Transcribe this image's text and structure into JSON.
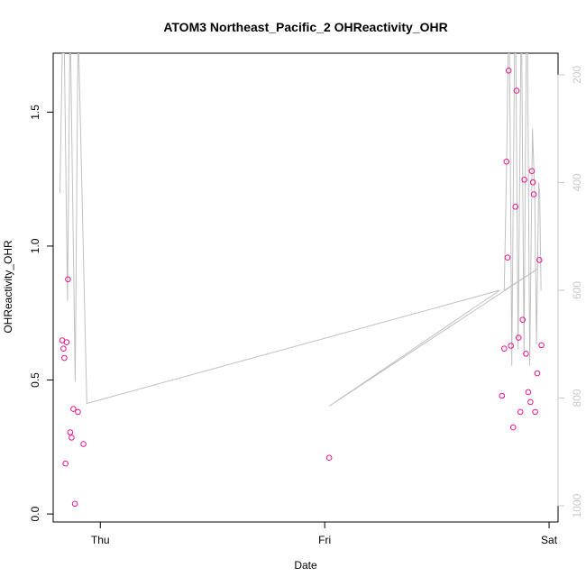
{
  "chart_data": {
    "type": "scatter",
    "title": "ATOM3 Northeast_Pacific_2 OHReactivity_OHR",
    "xlabel": "Date",
    "ylabel": "OHReactivity_OHR",
    "x_axis": {
      "ticks": [
        {
          "label": "Thu",
          "value": 1.0
        },
        {
          "label": "Fri",
          "value": 2.0
        },
        {
          "label": "Sat",
          "value": 3.0
        }
      ],
      "range_days": [
        0.79,
        3.04
      ]
    },
    "y_axis": {
      "range": [
        -0.03,
        1.72
      ],
      "ticks": [
        0.0,
        0.5,
        1.0,
        1.5
      ]
    },
    "right_axis": {
      "range": [
        1030,
        160
      ],
      "ticks": [
        200,
        400,
        600,
        800,
        1000
      ],
      "color": "#c8c8c8"
    },
    "grid": false,
    "colors": {
      "points": "#e8148c",
      "altitude_line": "#c0c0c0"
    },
    "series": [
      {
        "role": "points",
        "points": [
          [
            0.83,
            0.648
          ],
          [
            0.836,
            0.617
          ],
          [
            0.84,
            0.582
          ],
          [
            0.845,
            0.188
          ],
          [
            0.85,
            0.641
          ],
          [
            0.856,
            0.876
          ],
          [
            0.866,
            0.305
          ],
          [
            0.872,
            0.285
          ],
          [
            0.88,
            0.392
          ],
          [
            0.887,
            0.038
          ],
          [
            0.9,
            0.381
          ],
          [
            0.925,
            0.261
          ],
          [
            2.02,
            0.21
          ],
          [
            2.79,
            0.441
          ],
          [
            2.8,
            0.617
          ],
          [
            2.81,
            1.315
          ],
          [
            2.815,
            0.957
          ],
          [
            2.82,
            1.655
          ],
          [
            2.83,
            0.628
          ],
          [
            2.84,
            0.323
          ],
          [
            2.85,
            1.147
          ],
          [
            2.855,
            1.58
          ],
          [
            2.864,
            0.658
          ],
          [
            2.872,
            0.381
          ],
          [
            2.882,
            0.725
          ],
          [
            2.89,
            1.248
          ],
          [
            2.897,
            0.598
          ],
          [
            2.907,
            0.455
          ],
          [
            2.917,
            0.418
          ],
          [
            2.923,
            1.28
          ],
          [
            2.928,
            1.238
          ],
          [
            2.932,
            1.193
          ],
          [
            2.938,
            0.381
          ],
          [
            2.947,
            0.525
          ],
          [
            2.957,
            0.948
          ],
          [
            2.966,
            0.63
          ]
        ]
      },
      {
        "role": "altitude",
        "axis": "right",
        "points": [
          [
            0.82,
            420
          ],
          [
            0.83,
            160
          ],
          [
            0.84,
            160
          ],
          [
            0.854,
            620
          ],
          [
            0.864,
            160
          ],
          [
            0.868,
            160
          ],
          [
            0.888,
            770
          ],
          [
            0.9,
            160
          ],
          [
            0.904,
            160
          ],
          [
            0.94,
            810
          ],
          [
            2.78,
            600
          ],
          [
            2.02,
            815
          ],
          [
            2.95,
            560
          ],
          [
            2.8,
            600
          ],
          [
            2.81,
            380
          ],
          [
            2.818,
            160
          ],
          [
            2.824,
            160
          ],
          [
            2.834,
            740
          ],
          [
            2.846,
            160
          ],
          [
            2.852,
            160
          ],
          [
            2.862,
            710
          ],
          [
            2.874,
            160
          ],
          [
            2.878,
            160
          ],
          [
            2.888,
            720
          ],
          [
            2.898,
            160
          ],
          [
            2.904,
            160
          ],
          [
            2.914,
            740
          ],
          [
            2.926,
            300
          ],
          [
            2.936,
            420
          ],
          [
            2.944,
            700
          ],
          [
            2.954,
            400
          ],
          [
            2.958,
            420
          ],
          [
            2.964,
            600
          ]
        ]
      }
    ]
  }
}
